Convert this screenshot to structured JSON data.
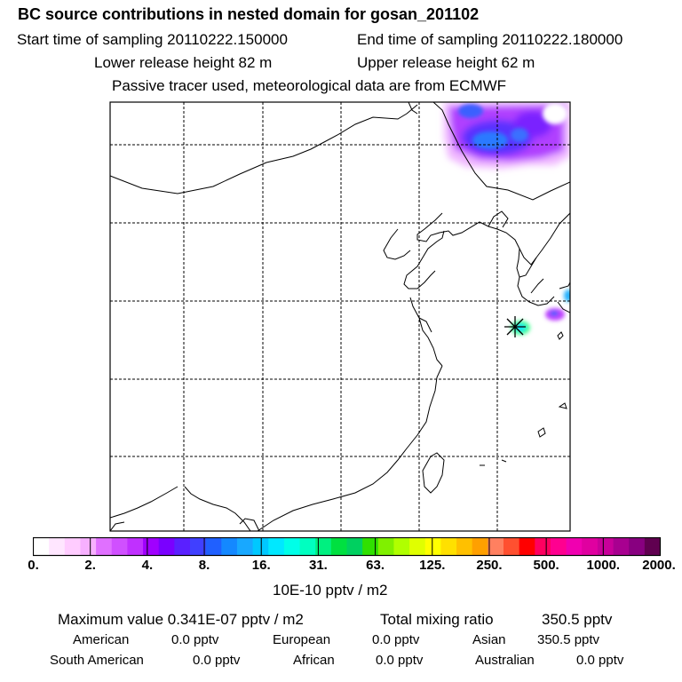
{
  "header": {
    "title": "BC  source contributions in nested domain for gosan_201102",
    "start_label": "Start time of sampling 20110222.150000",
    "end_label": "End time of sampling 20110222.180000",
    "lower_label": "Lower release height   82 m",
    "upper_label": "Upper release height   62 m",
    "tracer_note": "Passive tracer used, meteorological data are from ECMWF"
  },
  "colorbar": {
    "tick_labels": [
      "0.",
      "2.",
      "4.",
      "8.",
      "16.",
      "31.",
      "63.",
      "125.",
      "250.",
      "500.",
      "1000.",
      "2000."
    ],
    "unit_label": "10E-10 pptv / m2",
    "colors": [
      "#ffffff",
      "#ffe6ff",
      "#ffccff",
      "#f7b0ff",
      "#e070ff",
      "#d050ff",
      "#c030ff",
      "#a000ff",
      "#7a00ff",
      "#5a20ff",
      "#4040ff",
      "#2060ff",
      "#1488ff",
      "#18a8ff",
      "#00c8ff",
      "#00e8ff",
      "#00ffe8",
      "#00ffc0",
      "#00f080",
      "#00e040",
      "#00d060",
      "#30e000",
      "#80f000",
      "#b0ff00",
      "#e0ff00",
      "#ffff00",
      "#ffe000",
      "#ffc000",
      "#ffa000",
      "#ff8060",
      "#ff5030",
      "#ff0000",
      "#ff0060",
      "#ff0090",
      "#f000b0",
      "#e000a0",
      "#c8009a",
      "#a80090",
      "#880080",
      "#600050"
    ]
  },
  "summary": {
    "max_label": "Maximum value  0.341E-07 pptv / m2",
    "total_label": "Total mixing ratio",
    "total_value": "350.5 pptv",
    "regions_row1": [
      {
        "name": "American",
        "value": "0.0 pptv"
      },
      {
        "name": "European",
        "value": "0.0 pptv"
      },
      {
        "name": "Asian",
        "value": "350.5 pptv"
      }
    ],
    "regions_row2": [
      {
        "name": "South American",
        "value": "0.0 pptv"
      },
      {
        "name": "African",
        "value": "0.0 pptv"
      },
      {
        "name": "Australian",
        "value": "0.0 pptv"
      }
    ]
  }
}
